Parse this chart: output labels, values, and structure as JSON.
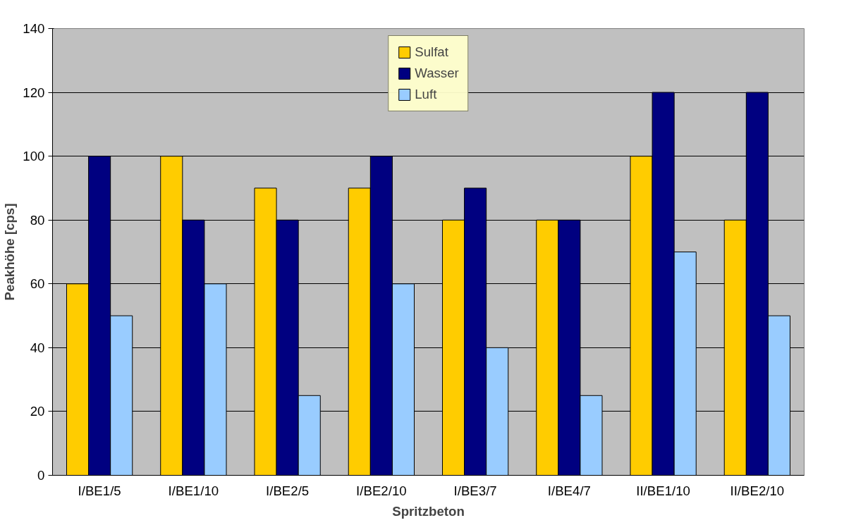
{
  "chart_data": {
    "type": "bar",
    "xlabel": "Spritzbeton",
    "ylabel": "Peakhöhe [cps]",
    "categories": [
      "I/BE1/5",
      "I/BE1/10",
      "I/BE2/5",
      "I/BE2/10",
      "I/BE3/7",
      "I/BE4/7",
      "II/BE1/10",
      "II/BE2/10"
    ],
    "series": [
      {
        "name": "Sulfat",
        "color": "#ffcc00",
        "values": [
          60,
          100,
          90,
          90,
          80,
          80,
          100,
          80
        ]
      },
      {
        "name": "Wasser",
        "color": "#000080",
        "values": [
          100,
          80,
          80,
          100,
          90,
          80,
          120,
          120
        ]
      },
      {
        "name": "Luft",
        "color": "#99ccff",
        "values": [
          50,
          60,
          25,
          60,
          40,
          25,
          70,
          50
        ]
      }
    ],
    "ylim": [
      0,
      140
    ],
    "yticks": [
      0,
      20,
      40,
      60,
      80,
      100,
      120,
      140
    ],
    "grid": "y",
    "legend": "top"
  }
}
